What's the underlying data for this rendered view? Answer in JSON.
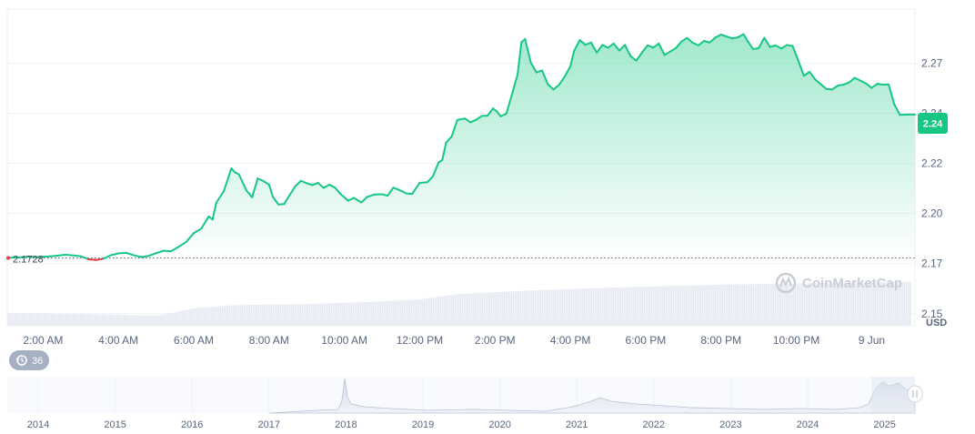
{
  "chart_data": {
    "type": "area",
    "currency": "USD",
    "start_price_label": "2.1728",
    "current_price_label": "2.24",
    "start_price": 2.1728,
    "current_price": 2.24,
    "y_ticks": [
      "2.27",
      "2.24",
      "2.22",
      "2.20",
      "2.17",
      "2.15"
    ],
    "y_tick_values": [
      2.27,
      2.245,
      2.22,
      2.195,
      2.17,
      2.145
    ],
    "ylim": [
      2.139,
      2.297
    ],
    "x_ticks": [
      "2:00 AM",
      "4:00 AM",
      "6:00 AM",
      "8:00 AM",
      "10:00 AM",
      "12:00 PM",
      "2:00 PM",
      "4:00 PM",
      "6:00 PM",
      "8:00 PM",
      "10:00 PM",
      "9 Jun"
    ],
    "x_tick_hours": [
      2,
      4,
      6,
      8,
      10,
      12,
      14,
      16,
      18,
      20,
      22,
      24
    ],
    "xlim": [
      1.05,
      25.15
    ],
    "line_color": "#16c784",
    "down_color": "#ea3943",
    "grid": true,
    "series": [
      {
        "values": [
          [
            1.05,
            2.1728
          ],
          [
            1.2,
            2.173
          ],
          [
            1.4,
            2.1731
          ],
          [
            1.6,
            2.1735
          ],
          [
            1.8,
            2.1732
          ],
          [
            2.0,
            2.1734
          ],
          [
            2.2,
            2.1736
          ],
          [
            2.4,
            2.174
          ],
          [
            2.6,
            2.1744
          ],
          [
            2.8,
            2.1741
          ],
          [
            3.0,
            2.1737
          ],
          [
            3.2,
            2.1722
          ],
          [
            3.4,
            2.1718
          ],
          [
            3.6,
            2.1724
          ],
          [
            3.8,
            2.1742
          ],
          [
            4.0,
            2.1751
          ],
          [
            4.2,
            2.1754
          ],
          [
            4.4,
            2.1742
          ],
          [
            4.6,
            2.1733
          ],
          [
            4.8,
            2.1738
          ],
          [
            5.0,
            2.1752
          ],
          [
            5.2,
            2.1764
          ],
          [
            5.4,
            2.1762
          ],
          [
            5.6,
            2.1784
          ],
          [
            5.8,
            2.1808
          ],
          [
            6.0,
            2.1852
          ],
          [
            6.2,
            2.1874
          ],
          [
            6.4,
            2.1935
          ],
          [
            6.5,
            2.192
          ],
          [
            6.6,
            2.2004
          ],
          [
            6.8,
            2.2062
          ],
          [
            7.0,
            2.2175
          ],
          [
            7.1,
            2.2155
          ],
          [
            7.2,
            2.2145
          ],
          [
            7.4,
            2.2065
          ],
          [
            7.55,
            2.2031
          ],
          [
            7.7,
            2.2125
          ],
          [
            7.85,
            2.2112
          ],
          [
            8.0,
            2.2094
          ],
          [
            8.1,
            2.2034
          ],
          [
            8.25,
            2.1995
          ],
          [
            8.4,
            2.1997
          ],
          [
            8.5,
            2.2028
          ],
          [
            8.7,
            2.2087
          ],
          [
            8.85,
            2.2113
          ],
          [
            9.0,
            2.2101
          ],
          [
            9.15,
            2.2092
          ],
          [
            9.3,
            2.2103
          ],
          [
            9.45,
            2.2078
          ],
          [
            9.6,
            2.2094
          ],
          [
            9.75,
            2.2079
          ],
          [
            9.9,
            2.2047
          ],
          [
            10.1,
            2.2014
          ],
          [
            10.25,
            2.2028
          ],
          [
            10.45,
            2.2005
          ],
          [
            10.6,
            2.2032
          ],
          [
            10.8,
            2.2045
          ],
          [
            11.0,
            2.2046
          ],
          [
            11.15,
            2.2039
          ],
          [
            11.3,
            2.2079
          ],
          [
            11.45,
            2.2068
          ],
          [
            11.65,
            2.205
          ],
          [
            11.8,
            2.2048
          ],
          [
            12.0,
            2.2103
          ],
          [
            12.2,
            2.2106
          ],
          [
            12.35,
            2.2135
          ],
          [
            12.5,
            2.2204
          ],
          [
            12.6,
            2.2217
          ],
          [
            12.7,
            2.2303
          ],
          [
            12.85,
            2.2335
          ],
          [
            13.0,
            2.2417
          ],
          [
            13.2,
            2.2424
          ],
          [
            13.35,
            2.2405
          ],
          [
            13.5,
            2.2418
          ],
          [
            13.65,
            2.2437
          ],
          [
            13.8,
            2.2438
          ],
          [
            13.95,
            2.2474
          ],
          [
            14.05,
            2.2459
          ],
          [
            14.15,
            2.2435
          ],
          [
            14.3,
            2.2448
          ],
          [
            14.45,
            2.2544
          ],
          [
            14.6,
            2.2645
          ],
          [
            14.7,
            2.2804
          ],
          [
            14.8,
            2.2821
          ],
          [
            14.95,
            2.2703
          ],
          [
            15.1,
            2.2654
          ],
          [
            15.25,
            2.2664
          ],
          [
            15.4,
            2.2596
          ],
          [
            15.55,
            2.2569
          ],
          [
            15.7,
            2.2592
          ],
          [
            15.85,
            2.2633
          ],
          [
            16.0,
            2.2684
          ],
          [
            16.1,
            2.2761
          ],
          [
            16.25,
            2.2815
          ],
          [
            16.4,
            2.2792
          ],
          [
            16.55,
            2.2803
          ],
          [
            16.7,
            2.2753
          ],
          [
            16.85,
            2.2791
          ],
          [
            17.0,
            2.2777
          ],
          [
            17.15,
            2.2798
          ],
          [
            17.3,
            2.2763
          ],
          [
            17.45,
            2.2791
          ],
          [
            17.6,
            2.2735
          ],
          [
            17.75,
            2.2713
          ],
          [
            17.9,
            2.2752
          ],
          [
            18.05,
            2.2789
          ],
          [
            18.2,
            2.2778
          ],
          [
            18.35,
            2.2798
          ],
          [
            18.5,
            2.2741
          ],
          [
            18.65,
            2.2758
          ],
          [
            18.8,
            2.2775
          ],
          [
            18.95,
            2.2808
          ],
          [
            19.1,
            2.2826
          ],
          [
            19.25,
            2.2802
          ],
          [
            19.4,
            2.2789
          ],
          [
            19.55,
            2.2811
          ],
          [
            19.7,
            2.2803
          ],
          [
            19.85,
            2.2828
          ],
          [
            20.0,
            2.2843
          ],
          [
            20.15,
            2.2833
          ],
          [
            20.3,
            2.2824
          ],
          [
            20.45,
            2.2829
          ],
          [
            20.6,
            2.2845
          ],
          [
            20.7,
            2.2812
          ],
          [
            20.85,
            2.2771
          ],
          [
            21.0,
            2.2775
          ],
          [
            21.15,
            2.2827
          ],
          [
            21.3,
            2.2781
          ],
          [
            21.45,
            2.2789
          ],
          [
            21.6,
            2.2773
          ],
          [
            21.75,
            2.2791
          ],
          [
            21.9,
            2.2786
          ],
          [
            22.05,
            2.2714
          ],
          [
            22.2,
            2.2637
          ],
          [
            22.35,
            2.2657
          ],
          [
            22.5,
            2.2619
          ],
          [
            22.65,
            2.2595
          ],
          [
            22.8,
            2.2571
          ],
          [
            22.95,
            2.2569
          ],
          [
            23.1,
            2.2588
          ],
          [
            23.25,
            2.2593
          ],
          [
            23.4,
            2.2604
          ],
          [
            23.55,
            2.2627
          ],
          [
            23.7,
            2.2613
          ],
          [
            23.85,
            2.2599
          ],
          [
            24.0,
            2.2577
          ],
          [
            24.15,
            2.2597
          ],
          [
            24.3,
            2.2593
          ],
          [
            24.45,
            2.2594
          ],
          [
            24.6,
            2.2495
          ],
          [
            24.75,
            2.2442
          ],
          [
            24.95,
            2.2444
          ],
          [
            25.15,
            2.2444
          ]
        ]
      }
    ],
    "volume": [
      [
        1.05,
        0.24
      ],
      [
        3.0,
        0.22
      ],
      [
        5.0,
        0.19
      ],
      [
        6.0,
        0.33
      ],
      [
        7.0,
        0.39
      ],
      [
        9.0,
        0.41
      ],
      [
        11.0,
        0.46
      ],
      [
        12.0,
        0.5
      ],
      [
        13.0,
        0.6
      ],
      [
        15.0,
        0.67
      ],
      [
        17.0,
        0.72
      ],
      [
        20.0,
        0.78
      ],
      [
        22.0,
        0.8
      ],
      [
        24.0,
        0.82
      ],
      [
        25.15,
        0.84
      ]
    ]
  },
  "watermark": {
    "text": "CoinMarketCap"
  },
  "history_badge": {
    "value": "36",
    "icon": "history-clock-icon"
  },
  "navigator": {
    "years": [
      "2014",
      "2015",
      "2016",
      "2017",
      "2018",
      "2019",
      "2020",
      "2021",
      "2022",
      "2023",
      "2024",
      "2025"
    ],
    "handle_icon": "drag-handle-icon"
  }
}
